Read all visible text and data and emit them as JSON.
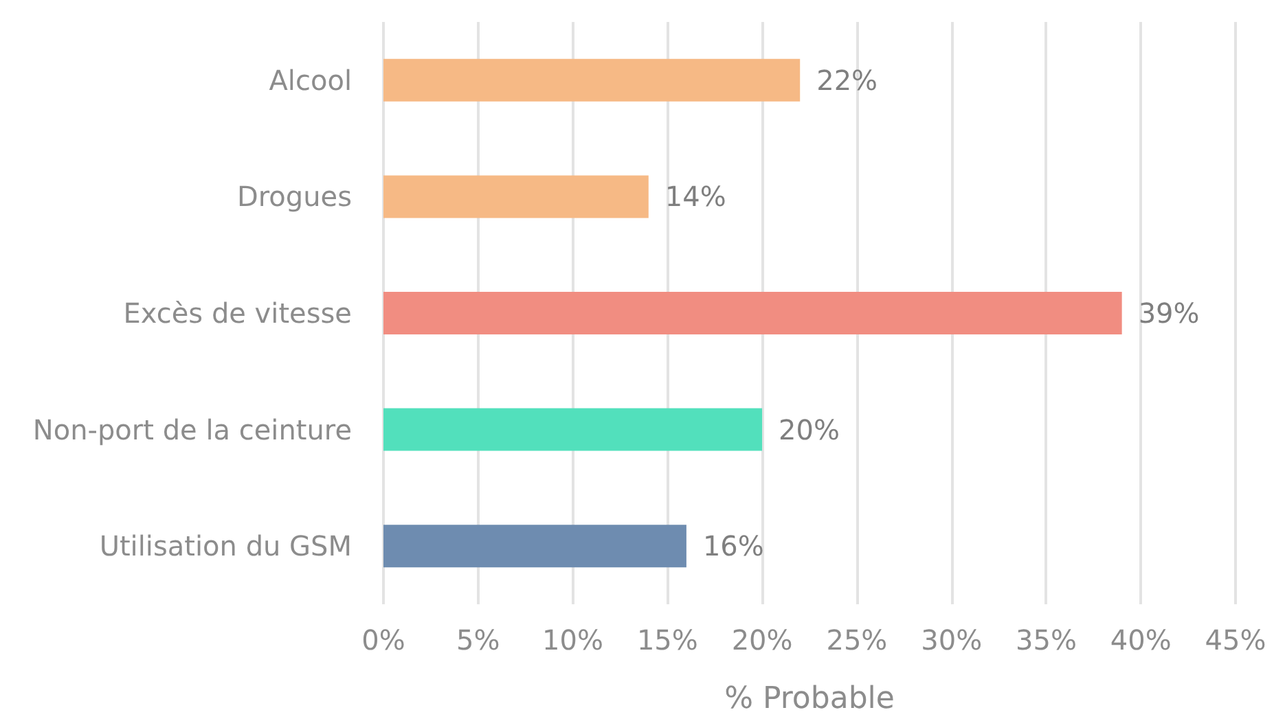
{
  "chart_data": {
    "type": "bar",
    "orientation": "horizontal",
    "xlabel": "% Probable",
    "categories": [
      "Alcool",
      "Drogues",
      "Excès de vitesse",
      "Non-port de la ceinture",
      "Utilisation du GSM"
    ],
    "values": [
      22,
      14,
      39,
      20,
      16
    ],
    "value_labels": [
      "22%",
      "14%",
      "39%",
      "20%",
      "16%"
    ],
    "colors": [
      "#f6b985",
      "#f6b985",
      "#f18d81",
      "#52e0bc",
      "#6e8cb0"
    ],
    "xlim": [
      0,
      45
    ],
    "xticks": [
      {
        "value": 0,
        "label": "0%"
      },
      {
        "value": 5,
        "label": "5%"
      },
      {
        "value": 10,
        "label": "10%"
      },
      {
        "value": 15,
        "label": "15%"
      },
      {
        "value": 20,
        "label": "20%"
      },
      {
        "value": 25,
        "label": "25%"
      },
      {
        "value": 30,
        "label": "30%"
      },
      {
        "value": 35,
        "label": "35%"
      },
      {
        "value": 40,
        "label": "40%"
      },
      {
        "value": 45,
        "label": "45%"
      }
    ],
    "grid": "x"
  }
}
